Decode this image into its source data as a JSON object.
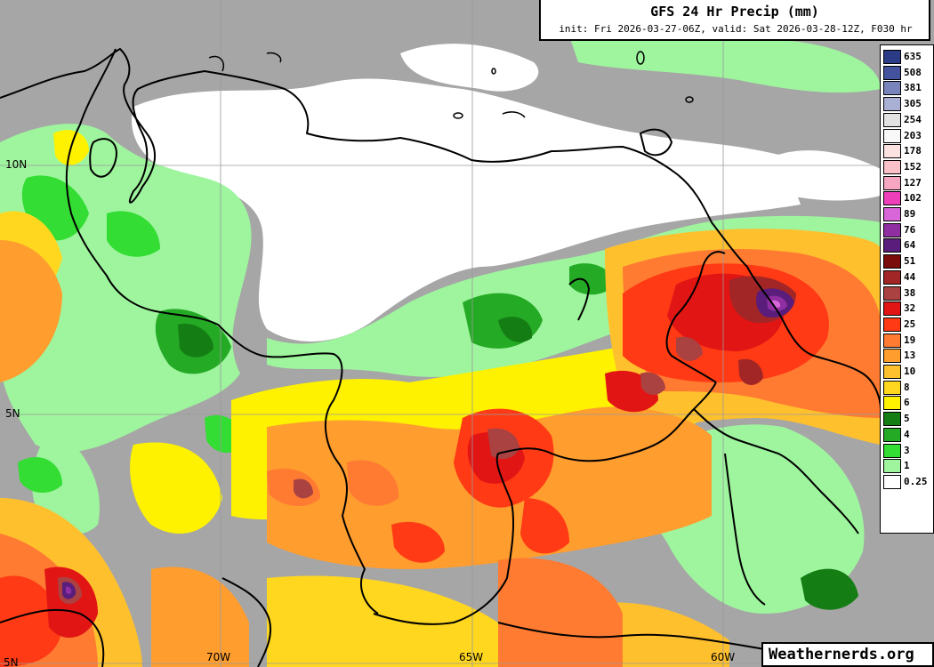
{
  "map": {
    "title": "GFS 24 Hr Precip (mm)",
    "subtitle": "init: Fri 2026-03-27-06Z, valid: Sat 2026-03-28-12Z, F030 hr",
    "watermark": "Weathernerds.org"
  },
  "legend": [
    {
      "label": "635",
      "color": "#2c3b86"
    },
    {
      "label": "508",
      "color": "#45539e"
    },
    {
      "label": "381",
      "color": "#7a84bc"
    },
    {
      "label": "305",
      "color": "#aab0d4"
    },
    {
      "label": "254",
      "color": "#e2e2e2"
    },
    {
      "label": "203",
      "color": "#f8f8f8"
    },
    {
      "label": "178",
      "color": "#fde2e2"
    },
    {
      "label": "152",
      "color": "#fbc1c8"
    },
    {
      "label": "127",
      "color": "#f7a6c2"
    },
    {
      "label": "102",
      "color": "#ee3fbb"
    },
    {
      "label": "89",
      "color": "#d866d8"
    },
    {
      "label": "76",
      "color": "#8f2fa2"
    },
    {
      "label": "64",
      "color": "#5a1d7c"
    },
    {
      "label": "51",
      "color": "#7b0c0c"
    },
    {
      "label": "44",
      "color": "#a32626"
    },
    {
      "label": "38",
      "color": "#aa4242"
    },
    {
      "label": "32",
      "color": "#e21515"
    },
    {
      "label": "25",
      "color": "#ff3a14"
    },
    {
      "label": "19",
      "color": "#ff7b32"
    },
    {
      "label": "13",
      "color": "#ff9d2e"
    },
    {
      "label": "10",
      "color": "#ffc02d"
    },
    {
      "label": "8",
      "color": "#ffd71f"
    },
    {
      "label": "6",
      "color": "#fff200"
    },
    {
      "label": "5",
      "color": "#147d14"
    },
    {
      "label": "4",
      "color": "#25aa25"
    },
    {
      "label": "3",
      "color": "#33dd33"
    },
    {
      "label": "1",
      "color": "#9ef59e"
    },
    {
      "label": "0.25",
      "color": "#ffffff"
    }
  ],
  "lat_labels": [
    "10N",
    "5N",
    "5N"
  ],
  "lon_labels": [
    "70W",
    "65W",
    "60W"
  ]
}
